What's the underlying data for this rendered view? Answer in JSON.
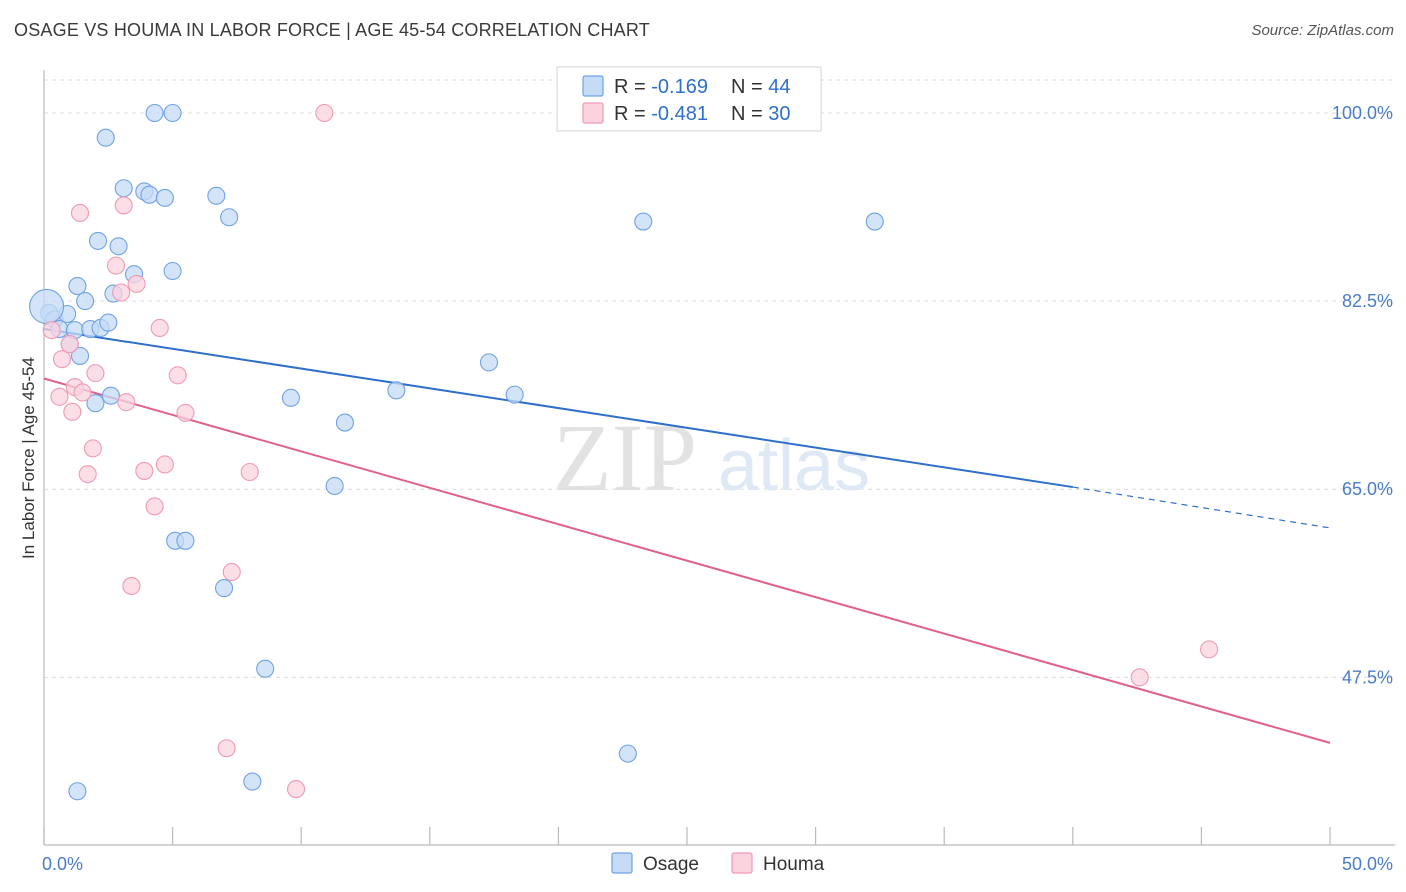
{
  "title": "OSAGE VS HOUMA IN LABOR FORCE | AGE 45-54 CORRELATION CHART",
  "source": "Source: ZipAtlas.com",
  "colors": {
    "osage": "#6fa2e6",
    "osage_fill": "#c5dbf6",
    "osage_line": "#2f6fcb",
    "houma": "#f09ab4",
    "houma_fill": "#fbd3df",
    "houma_line": "#e0608c",
    "axis_text": "#4a7cc9",
    "grid": "#dddddd"
  },
  "legend": {
    "osage": {
      "r_label": "R = ",
      "r_value": "-0.169",
      "n_label": "N = ",
      "n_value": "44"
    },
    "houma": {
      "r_label": "R = ",
      "r_value": "-0.481",
      "n_label": "N = ",
      "n_value": "30"
    }
  },
  "bottom_legend": {
    "osage": "Osage",
    "houma": "Houma"
  },
  "chart_data": {
    "type": "scatter",
    "ylabel": "In Labor Force | Age 45-54",
    "xlabel": "",
    "xlim": [
      0,
      50
    ],
    "ylim": [
      31.9,
      104.0
    ],
    "x_tick_labels": [
      {
        "value": 0,
        "label": "0.0%"
      },
      {
        "value": 50,
        "label": "50.0%"
      }
    ],
    "y_tick_labels": [
      {
        "value": 100.0,
        "label": "100.0%"
      },
      {
        "value": 82.5,
        "label": "82.5%"
      },
      {
        "value": 65.0,
        "label": "65.0%"
      },
      {
        "value": 47.5,
        "label": "47.5%"
      }
    ],
    "grid": true,
    "legend_position": "top-center",
    "series": [
      {
        "name": "Osage",
        "points": [
          [
            0.2,
            81.4
          ],
          [
            0.4,
            80.8
          ],
          [
            0.6,
            79.9
          ],
          [
            0.9,
            81.3
          ],
          [
            1.0,
            78.5
          ],
          [
            1.2,
            79.8
          ],
          [
            1.3,
            83.9
          ],
          [
            1.4,
            77.4
          ],
          [
            1.6,
            82.5
          ],
          [
            1.8,
            79.9
          ],
          [
            2.0,
            73.0
          ],
          [
            2.1,
            88.1
          ],
          [
            2.2,
            80.0
          ],
          [
            2.4,
            97.7
          ],
          [
            2.5,
            80.5
          ],
          [
            2.6,
            73.7
          ],
          [
            2.7,
            83.2
          ],
          [
            2.9,
            87.6
          ],
          [
            3.1,
            93.0
          ],
          [
            3.5,
            85.0
          ],
          [
            3.9,
            92.7
          ],
          [
            4.1,
            92.4
          ],
          [
            4.3,
            100.0
          ],
          [
            4.7,
            92.1
          ],
          [
            5.0,
            100.0
          ],
          [
            5.0,
            85.3
          ],
          [
            5.1,
            60.2
          ],
          [
            5.5,
            60.2
          ],
          [
            6.7,
            92.3
          ],
          [
            7.0,
            55.8
          ],
          [
            7.2,
            90.3
          ],
          [
            8.1,
            37.8
          ],
          [
            8.6,
            48.3
          ],
          [
            9.6,
            73.5
          ],
          [
            11.3,
            65.3
          ],
          [
            11.7,
            71.2
          ],
          [
            13.7,
            74.2
          ],
          [
            17.3,
            76.8
          ],
          [
            18.3,
            73.8
          ],
          [
            22.7,
            40.4
          ],
          [
            23.3,
            89.9
          ],
          [
            32.3,
            89.9
          ],
          [
            1.3,
            36.9
          ],
          [
            0.1,
            82.0
          ]
        ],
        "trend": {
          "x0": 0,
          "y0": 79.9,
          "x1": 40,
          "y1": 65.2,
          "dashed_to_x": 50,
          "dashed_to_y": 61.4
        }
      },
      {
        "name": "Houma",
        "points": [
          [
            0.3,
            79.8
          ],
          [
            0.6,
            73.6
          ],
          [
            0.7,
            77.1
          ],
          [
            1.0,
            78.5
          ],
          [
            1.1,
            72.2
          ],
          [
            1.2,
            74.5
          ],
          [
            1.4,
            90.7
          ],
          [
            1.5,
            74.0
          ],
          [
            1.7,
            66.4
          ],
          [
            1.9,
            68.8
          ],
          [
            2.0,
            75.8
          ],
          [
            2.8,
            85.8
          ],
          [
            3.0,
            83.3
          ],
          [
            3.1,
            91.4
          ],
          [
            3.2,
            73.1
          ],
          [
            3.4,
            56.0
          ],
          [
            3.6,
            84.1
          ],
          [
            3.9,
            66.7
          ],
          [
            4.3,
            63.4
          ],
          [
            4.5,
            80.0
          ],
          [
            4.7,
            67.3
          ],
          [
            5.2,
            75.6
          ],
          [
            5.5,
            72.1
          ],
          [
            7.1,
            40.9
          ],
          [
            7.3,
            57.3
          ],
          [
            8.0,
            66.6
          ],
          [
            9.8,
            37.1
          ],
          [
            10.9,
            100.0
          ],
          [
            42.6,
            47.5
          ],
          [
            45.3,
            50.1
          ]
        ],
        "trend": {
          "x0": 0,
          "y0": 75.3,
          "x1": 50,
          "y1": 41.4
        }
      }
    ]
  }
}
